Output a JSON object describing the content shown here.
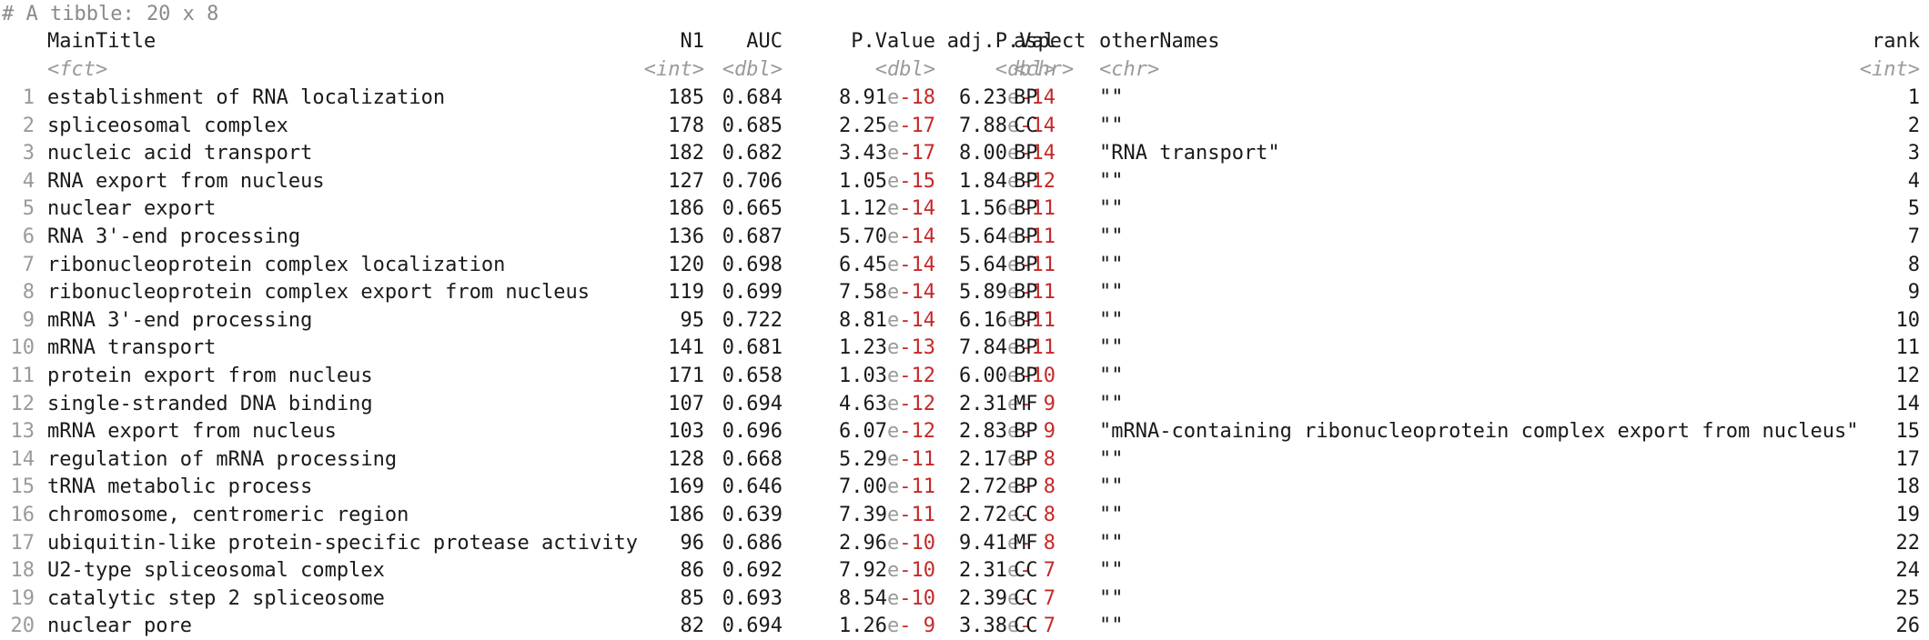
{
  "console": {
    "header": "# A tibble: 20 x 8"
  },
  "columns": [
    {
      "name": "MainTitle",
      "type": "<fct>"
    },
    {
      "name": "N1",
      "type": "<int>"
    },
    {
      "name": "AUC",
      "type": "<dbl>"
    },
    {
      "name": "P.Value",
      "type": "<dbl>"
    },
    {
      "name": "adj.P.Val",
      "type": "<dbl>"
    },
    {
      "name": "aspect",
      "type": "<chr>"
    },
    {
      "name": "otherNames",
      "type": "<chr>"
    },
    {
      "name": "rank",
      "type": "<int>"
    }
  ],
  "rows": [
    {
      "num": "1",
      "title": "establishment of RNA localization",
      "n1": "185",
      "auc": "0.684",
      "p_m": "8.91",
      "p_e": "-18",
      "a_m": "6.23",
      "a_e": "-14",
      "aspect": "BP",
      "other": "\"\"",
      "rank": "1"
    },
    {
      "num": "2",
      "title": "spliceosomal complex",
      "n1": "178",
      "auc": "0.685",
      "p_m": "2.25",
      "p_e": "-17",
      "a_m": "7.88",
      "a_e": "-14",
      "aspect": "CC",
      "other": "\"\"",
      "rank": "2"
    },
    {
      "num": "3",
      "title": "nucleic acid transport",
      "n1": "182",
      "auc": "0.682",
      "p_m": "3.43",
      "p_e": "-17",
      "a_m": "8.00",
      "a_e": "-14",
      "aspect": "BP",
      "other": "\"RNA transport\"",
      "rank": "3"
    },
    {
      "num": "4",
      "title": "RNA export from nucleus",
      "n1": "127",
      "auc": "0.706",
      "p_m": "1.05",
      "p_e": "-15",
      "a_m": "1.84",
      "a_e": "-12",
      "aspect": "BP",
      "other": "\"\"",
      "rank": "4"
    },
    {
      "num": "5",
      "title": "nuclear export",
      "n1": "186",
      "auc": "0.665",
      "p_m": "1.12",
      "p_e": "-14",
      "a_m": "1.56",
      "a_e": "-11",
      "aspect": "BP",
      "other": "\"\"",
      "rank": "5"
    },
    {
      "num": "6",
      "title": "RNA 3'-end processing",
      "n1": "136",
      "auc": "0.687",
      "p_m": "5.70",
      "p_e": "-14",
      "a_m": "5.64",
      "a_e": "-11",
      "aspect": "BP",
      "other": "\"\"",
      "rank": "7"
    },
    {
      "num": "7",
      "title": "ribonucleoprotein complex localization",
      "n1": "120",
      "auc": "0.698",
      "p_m": "6.45",
      "p_e": "-14",
      "a_m": "5.64",
      "a_e": "-11",
      "aspect": "BP",
      "other": "\"\"",
      "rank": "8"
    },
    {
      "num": "8",
      "title": "ribonucleoprotein complex export from nucleus",
      "n1": "119",
      "auc": "0.699",
      "p_m": "7.58",
      "p_e": "-14",
      "a_m": "5.89",
      "a_e": "-11",
      "aspect": "BP",
      "other": "\"\"",
      "rank": "9"
    },
    {
      "num": "9",
      "title": "mRNA 3'-end processing",
      "n1": "95",
      "auc": "0.722",
      "p_m": "8.81",
      "p_e": "-14",
      "a_m": "6.16",
      "a_e": "-11",
      "aspect": "BP",
      "other": "\"\"",
      "rank": "10"
    },
    {
      "num": "10",
      "title": "mRNA transport",
      "n1": "141",
      "auc": "0.681",
      "p_m": "1.23",
      "p_e": "-13",
      "a_m": "7.84",
      "a_e": "-11",
      "aspect": "BP",
      "other": "\"\"",
      "rank": "11"
    },
    {
      "num": "11",
      "title": "protein export from nucleus",
      "n1": "171",
      "auc": "0.658",
      "p_m": "1.03",
      "p_e": "-12",
      "a_m": "6.00",
      "a_e": "-10",
      "aspect": "BP",
      "other": "\"\"",
      "rank": "12"
    },
    {
      "num": "12",
      "title": "single-stranded DNA binding",
      "n1": "107",
      "auc": "0.694",
      "p_m": "4.63",
      "p_e": "-12",
      "a_m": "2.31",
      "a_e": "- 9",
      "aspect": "MF",
      "other": "\"\"",
      "rank": "14"
    },
    {
      "num": "13",
      "title": "mRNA export from nucleus",
      "n1": "103",
      "auc": "0.696",
      "p_m": "6.07",
      "p_e": "-12",
      "a_m": "2.83",
      "a_e": "- 9",
      "aspect": "BP",
      "other": "\"mRNA-containing ribonucleoprotein complex export from nucleus\"",
      "rank": "15"
    },
    {
      "num": "14",
      "title": "regulation of mRNA processing",
      "n1": "128",
      "auc": "0.668",
      "p_m": "5.29",
      "p_e": "-11",
      "a_m": "2.17",
      "a_e": "- 8",
      "aspect": "BP",
      "other": "\"\"",
      "rank": "17"
    },
    {
      "num": "15",
      "title": "tRNA metabolic process",
      "n1": "169",
      "auc": "0.646",
      "p_m": "7.00",
      "p_e": "-11",
      "a_m": "2.72",
      "a_e": "- 8",
      "aspect": "BP",
      "other": "\"\"",
      "rank": "18"
    },
    {
      "num": "16",
      "title": "chromosome, centromeric region",
      "n1": "186",
      "auc": "0.639",
      "p_m": "7.39",
      "p_e": "-11",
      "a_m": "2.72",
      "a_e": "- 8",
      "aspect": "CC",
      "other": "\"\"",
      "rank": "19"
    },
    {
      "num": "17",
      "title": "ubiquitin-like protein-specific protease activity",
      "n1": "96",
      "auc": "0.686",
      "p_m": "2.96",
      "p_e": "-10",
      "a_m": "9.41",
      "a_e": "- 8",
      "aspect": "MF",
      "other": "\"\"",
      "rank": "22"
    },
    {
      "num": "18",
      "title": "U2-type spliceosomal complex",
      "n1": "86",
      "auc": "0.692",
      "p_m": "7.92",
      "p_e": "-10",
      "a_m": "2.31",
      "a_e": "- 7",
      "aspect": "CC",
      "other": "\"\"",
      "rank": "24"
    },
    {
      "num": "19",
      "title": "catalytic step 2 spliceosome",
      "n1": "85",
      "auc": "0.693",
      "p_m": "8.54",
      "p_e": "-10",
      "a_m": "2.39",
      "a_e": "- 7",
      "aspect": "CC",
      "other": "\"\"",
      "rank": "25"
    },
    {
      "num": "20",
      "title": "nuclear pore",
      "n1": "82",
      "auc": "0.694",
      "p_m": "1.26",
      "p_e": "- 9",
      "a_m": "3.38",
      "a_e": "- 7",
      "aspect": "CC",
      "other": "\"\"",
      "rank": "26"
    }
  ]
}
